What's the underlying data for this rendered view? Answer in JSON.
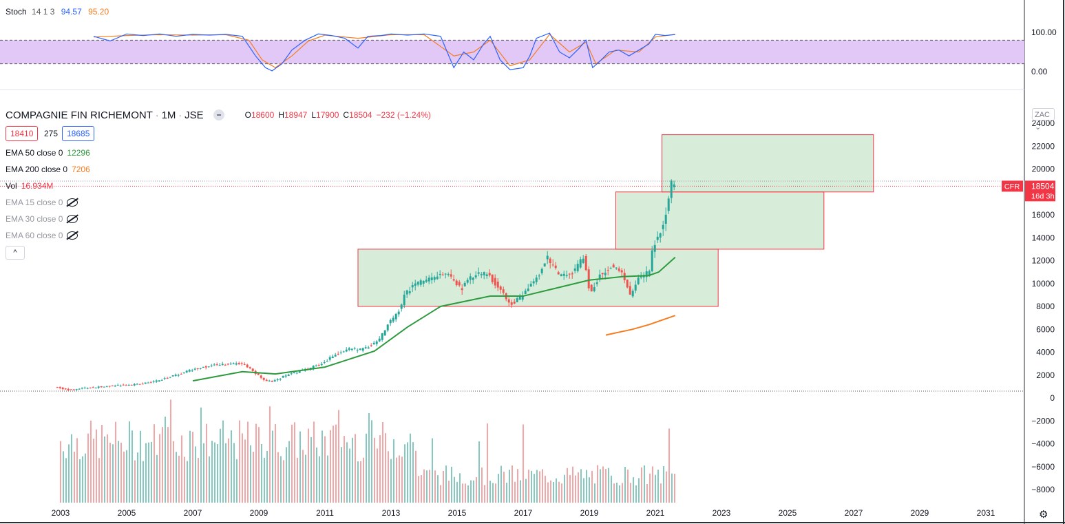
{
  "stoch_panel": {
    "label": "Stoch",
    "params": "14 1 3",
    "k_value": "94.57",
    "d_value": "95.20",
    "axis_labels": [
      "100.00",
      "0.00"
    ],
    "band_color": "#e1c8f7"
  },
  "main_panel": {
    "symbol_title": "COMPAGNIE FIN RICHEMONT",
    "interval": "1M",
    "exchange": "JSE",
    "ohlc": {
      "o_label": "O",
      "o_value": "18600",
      "h_label": "H",
      "h_value": "18947",
      "l_label": "L",
      "l_value": "17900",
      "c_label": "C",
      "c_value": "18504",
      "change": "−232 (−1.24%)"
    },
    "bid": "18410",
    "spread": "275",
    "ask": "18685",
    "indicators": [
      {
        "name": "EMA 50 close 0",
        "value": "12296",
        "color": "#2e9a3e",
        "visible": true
      },
      {
        "name": "EMA 200 close 0",
        "value": "7206",
        "color": "#f57c1f",
        "visible": true
      },
      {
        "name": "Vol",
        "value": "16.934M",
        "color": "#f23645",
        "visible": true
      },
      {
        "name": "EMA 15 close 0",
        "value": "",
        "color": "#9598a1",
        "visible": false
      },
      {
        "name": "EMA 30 close 0",
        "value": "",
        "color": "#9598a1",
        "visible": false
      },
      {
        "name": "EMA 60 close 0",
        "value": "",
        "color": "#9598a1",
        "visible": false
      }
    ],
    "currency": "ZAC",
    "last_price_tag": {
      "ticker": "CFR",
      "price": "18504",
      "countdown": "16d 3h"
    },
    "collapse_icon": "chevron-up-icon",
    "settings_icon": "gear-icon"
  },
  "chart_data": {
    "type": "candlestick",
    "price_axis_ticks": [
      "24000",
      "22000",
      "20000",
      "18000",
      "16000",
      "14000",
      "12000",
      "10000",
      "8000",
      "6000",
      "4000",
      "2000",
      "0",
      "−2000",
      "−4000",
      "−6000",
      "−8000"
    ],
    "time_axis_ticks": [
      "2003",
      "2005",
      "2007",
      "2009",
      "2011",
      "2013",
      "2015",
      "2017",
      "2019",
      "2021",
      "2023",
      "2025",
      "2027",
      "2029",
      "2031"
    ],
    "ylim": [
      -9000,
      24500
    ],
    "xlim": [
      2003.0,
      2032.0
    ],
    "price_path": [
      [
        2002.9,
        1000
      ],
      [
        2003.3,
        700
      ],
      [
        2003.8,
        850
      ],
      [
        2004.5,
        1050
      ],
      [
        2005.5,
        1200
      ],
      [
        2006.0,
        1500
      ],
      [
        2006.7,
        2100
      ],
      [
        2007.2,
        2600
      ],
      [
        2007.8,
        2900
      ],
      [
        2008.6,
        3000
      ],
      [
        2008.9,
        2400
      ],
      [
        2009.2,
        1600
      ],
      [
        2009.5,
        1400
      ],
      [
        2009.9,
        2000
      ],
      [
        2010.5,
        2500
      ],
      [
        2011.0,
        3000
      ],
      [
        2011.4,
        3800
      ],
      [
        2011.8,
        4300
      ],
      [
        2012.2,
        4200
      ],
      [
        2012.7,
        5000
      ],
      [
        2013.0,
        6500
      ],
      [
        2013.3,
        7500
      ],
      [
        2013.5,
        9000
      ],
      [
        2013.8,
        10000
      ],
      [
        2014.3,
        10400
      ],
      [
        2014.8,
        10900
      ],
      [
        2015.2,
        9500
      ],
      [
        2015.6,
        10800
      ],
      [
        2016.0,
        10900
      ],
      [
        2016.4,
        9400
      ],
      [
        2016.7,
        8200
      ],
      [
        2017.0,
        8800
      ],
      [
        2017.5,
        10500
      ],
      [
        2017.8,
        12300
      ],
      [
        2018.2,
        10600
      ],
      [
        2018.6,
        11000
      ],
      [
        2018.9,
        12400
      ],
      [
        2019.1,
        9200
      ],
      [
        2019.4,
        10700
      ],
      [
        2019.8,
        11600
      ],
      [
        2020.1,
        10800
      ],
      [
        2020.3,
        9000
      ],
      [
        2020.6,
        10500
      ],
      [
        2020.9,
        11000
      ],
      [
        2021.0,
        13200
      ],
      [
        2021.2,
        14200
      ],
      [
        2021.4,
        16000
      ],
      [
        2021.55,
        18800
      ],
      [
        2021.6,
        18504
      ]
    ],
    "ema50": [
      [
        2007.0,
        1500
      ],
      [
        2008.5,
        2300
      ],
      [
        2009.5,
        2100
      ],
      [
        2011.0,
        2700
      ],
      [
        2012.5,
        4100
      ],
      [
        2013.5,
        6200
      ],
      [
        2014.5,
        8000
      ],
      [
        2016.0,
        8900
      ],
      [
        2017.0,
        8900
      ],
      [
        2018.0,
        9600
      ],
      [
        2019.0,
        10300
      ],
      [
        2020.0,
        10600
      ],
      [
        2020.8,
        10700
      ],
      [
        2021.1,
        11000
      ],
      [
        2021.6,
        12296
      ]
    ],
    "ema200": [
      [
        2019.5,
        5500
      ],
      [
        2020.3,
        6000
      ],
      [
        2020.8,
        6400
      ],
      [
        2021.6,
        7206
      ]
    ],
    "stoch_k": [
      [
        2004.0,
        90
      ],
      [
        2004.5,
        78
      ],
      [
        2005.0,
        96
      ],
      [
        2005.5,
        92
      ],
      [
        2006.0,
        96
      ],
      [
        2006.5,
        90
      ],
      [
        2007.0,
        95
      ],
      [
        2007.5,
        93
      ],
      [
        2008.0,
        95
      ],
      [
        2008.5,
        90
      ],
      [
        2008.9,
        40
      ],
      [
        2009.2,
        10
      ],
      [
        2009.4,
        2
      ],
      [
        2009.7,
        20
      ],
      [
        2010.0,
        55
      ],
      [
        2010.4,
        80
      ],
      [
        2010.8,
        96
      ],
      [
        2011.2,
        92
      ],
      [
        2011.6,
        85
      ],
      [
        2012.0,
        60
      ],
      [
        2012.3,
        90
      ],
      [
        2012.7,
        92
      ],
      [
        2013.0,
        96
      ],
      [
        2013.5,
        93
      ],
      [
        2014.0,
        96
      ],
      [
        2014.5,
        90
      ],
      [
        2014.9,
        10
      ],
      [
        2015.2,
        50
      ],
      [
        2015.5,
        30
      ],
      [
        2015.8,
        70
      ],
      [
        2016.0,
        90
      ],
      [
        2016.3,
        30
      ],
      [
        2016.6,
        5
      ],
      [
        2017.0,
        10
      ],
      [
        2017.2,
        40
      ],
      [
        2017.4,
        85
      ],
      [
        2017.8,
        98
      ],
      [
        2018.1,
        50
      ],
      [
        2018.4,
        35
      ],
      [
        2018.7,
        60
      ],
      [
        2018.9,
        80
      ],
      [
        2019.1,
        10
      ],
      [
        2019.3,
        25
      ],
      [
        2019.6,
        50
      ],
      [
        2019.9,
        55
      ],
      [
        2020.2,
        40
      ],
      [
        2020.5,
        55
      ],
      [
        2020.8,
        70
      ],
      [
        2021.0,
        95
      ],
      [
        2021.3,
        92
      ],
      [
        2021.6,
        94.57
      ]
    ],
    "stoch_d": [
      [
        2004.0,
        88
      ],
      [
        2005.0,
        92
      ],
      [
        2006.0,
        94
      ],
      [
        2007.0,
        93
      ],
      [
        2008.0,
        94
      ],
      [
        2008.7,
        80
      ],
      [
        2009.1,
        30
      ],
      [
        2009.5,
        10
      ],
      [
        2010.0,
        40
      ],
      [
        2010.5,
        78
      ],
      [
        2011.0,
        93
      ],
      [
        2012.0,
        85
      ],
      [
        2013.0,
        94
      ],
      [
        2014.0,
        94
      ],
      [
        2014.9,
        40
      ],
      [
        2015.5,
        50
      ],
      [
        2016.0,
        80
      ],
      [
        2016.6,
        15
      ],
      [
        2017.2,
        30
      ],
      [
        2017.8,
        95
      ],
      [
        2018.4,
        50
      ],
      [
        2018.9,
        75
      ],
      [
        2019.2,
        20
      ],
      [
        2019.8,
        55
      ],
      [
        2020.5,
        50
      ],
      [
        2021.0,
        88
      ],
      [
        2021.6,
        95.2
      ]
    ],
    "rectangles": [
      {
        "x0": 2012.0,
        "x1": 2022.9,
        "y0": 8000,
        "y1": 13000
      },
      {
        "x0": 2019.8,
        "x1": 2026.1,
        "y0": 13000,
        "y1": 18000
      },
      {
        "x0": 2021.2,
        "x1": 2027.6,
        "y0": 18000,
        "y1": 23000
      }
    ],
    "volume_note": "volume histogram drawn in lower region"
  }
}
